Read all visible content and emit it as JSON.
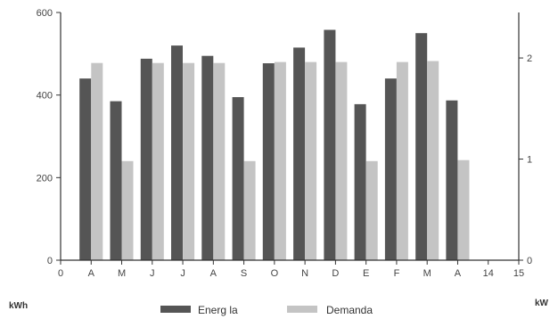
{
  "chart_data": {
    "type": "bar",
    "categories": [
      "A",
      "M",
      "J",
      "J",
      "A",
      "S",
      "O",
      "N",
      "D",
      "E",
      "F",
      "M",
      "A"
    ],
    "x_tick_labels": [
      "0",
      "A",
      "M",
      "J",
      "J",
      "A",
      "S",
      "O",
      "N",
      "D",
      "E",
      "F",
      "M",
      "A",
      "14",
      "15"
    ],
    "series": [
      {
        "name": "Energ la",
        "axis": "left",
        "color": "#555555",
        "values": [
          440,
          385,
          488,
          520,
          495,
          395,
          477,
          515,
          558,
          378,
          440,
          550,
          387
        ]
      },
      {
        "name": "Demanda",
        "axis": "right",
        "color": "#c4c4c4",
        "values": [
          1.95,
          0.98,
          1.95,
          1.95,
          1.95,
          0.98,
          1.96,
          1.96,
          1.96,
          0.98,
          1.96,
          1.97,
          0.99
        ]
      }
    ],
    "y_left": {
      "label": "kWh",
      "ylim": [
        0,
        600
      ],
      "ticks": [
        0,
        200,
        400,
        600
      ]
    },
    "y_right": {
      "label": "kW",
      "ylim": [
        0,
        2.45
      ],
      "ticks": [
        0,
        1,
        2
      ]
    },
    "xlim": [
      0,
      15
    ],
    "grid": false,
    "legend_position": "bottom-center"
  }
}
